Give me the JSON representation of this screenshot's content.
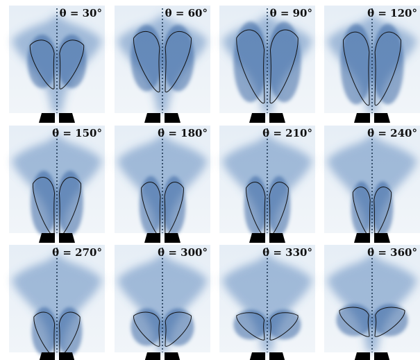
{
  "panels": [
    {
      "label": "θ = 30°"
    },
    {
      "label": "θ = 60°"
    },
    {
      "label": "θ = 90°"
    },
    {
      "label": "θ = 120°"
    },
    {
      "label": "θ = 150°"
    },
    {
      "label": "θ = 180°"
    },
    {
      "label": "θ = 210°"
    },
    {
      "label": "θ = 240°"
    },
    {
      "label": "θ = 270°"
    },
    {
      "label": "θ = 300°"
    },
    {
      "label": "θ = 330°"
    },
    {
      "label": "θ = 360°"
    }
  ]
}
